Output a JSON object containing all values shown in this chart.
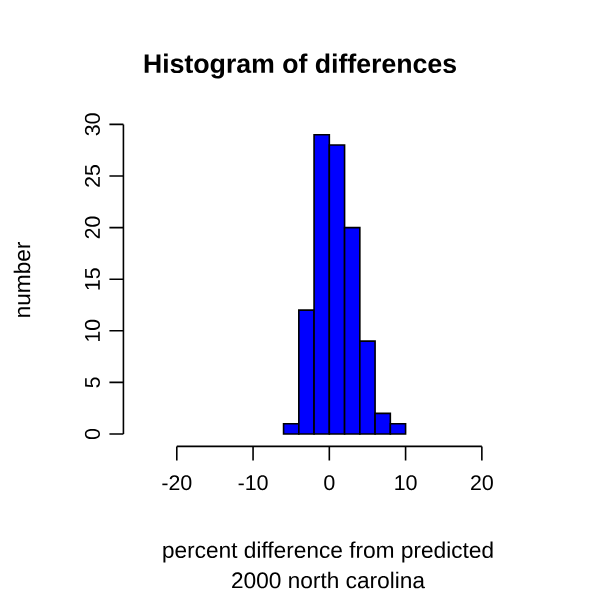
{
  "chart_data": {
    "type": "histogram",
    "title": "Histogram of differences",
    "xlabel": "percent difference from predicted",
    "ylabel": "number",
    "annotations": [
      "2000  north carolina"
    ],
    "bins": [
      -6,
      -4,
      -2,
      0,
      2,
      4,
      6,
      8,
      10
    ],
    "values": [
      1,
      12,
      29,
      28,
      20,
      9,
      2,
      1
    ],
    "color": "#0000ff",
    "xlim": [
      -20,
      20
    ],
    "xticks": [
      -20,
      -10,
      0,
      10,
      20
    ],
    "ylim": [
      0,
      30
    ],
    "yticks": [
      0,
      5,
      10,
      15,
      20,
      25,
      30
    ]
  }
}
